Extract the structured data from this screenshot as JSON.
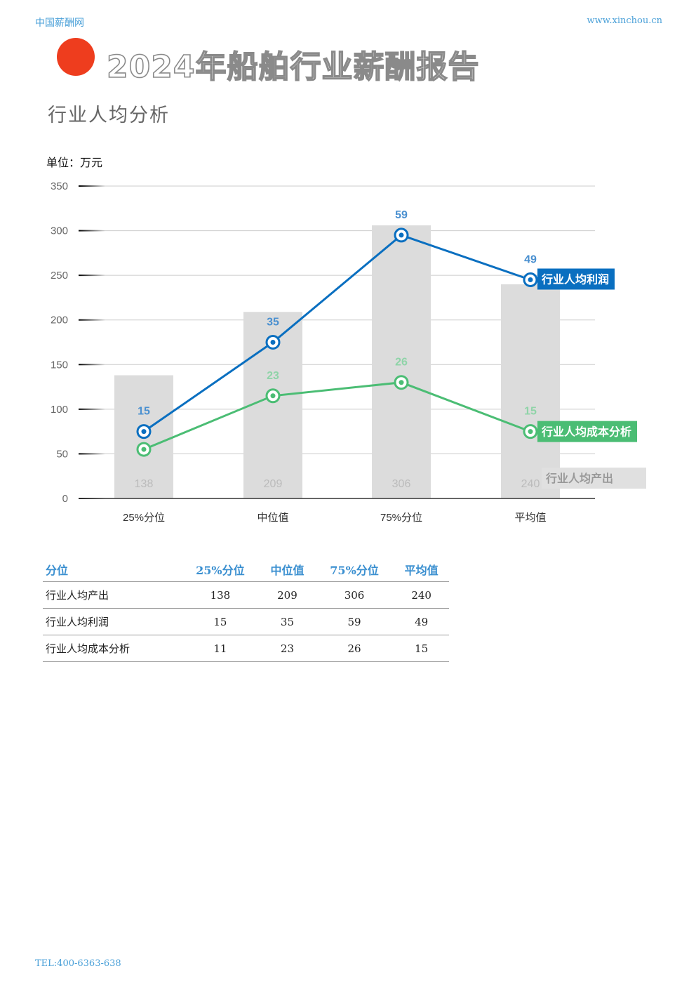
{
  "header": {
    "brand": "中国薪酬网",
    "url": "www.xinchou.cn"
  },
  "report": {
    "title": "2024年船舶行业薪酬报告",
    "subtitle": "行业人均分析"
  },
  "colors": {
    "accent_dot": "#ee3d1e",
    "bars": "#dcdcdc",
    "profit": "#0a6fc0",
    "cost": "#4bbd74"
  },
  "chart_data": {
    "type": "bar+line",
    "unit_label": "单位：万元",
    "categories": [
      "25%分位",
      "中位值",
      "75%分位",
      "平均值"
    ],
    "ylim": [
      0,
      350
    ],
    "yticks": [
      0,
      50,
      100,
      150,
      200,
      250,
      300,
      350
    ],
    "grid": true,
    "series": [
      {
        "name": "行业人均产出",
        "kind": "bar",
        "values": [
          138,
          209,
          306,
          240
        ],
        "color": "#dcdcdc"
      },
      {
        "name": "行业人均利润",
        "kind": "line",
        "values": [
          75,
          175,
          295,
          245
        ],
        "labels": [
          15,
          35,
          59,
          49
        ],
        "color": "#0a6fc0"
      },
      {
        "name": "行业人均成本分析",
        "kind": "line",
        "values": [
          55,
          115,
          130,
          75
        ],
        "labels": [
          "",
          23,
          26,
          15
        ],
        "color": "#4bbd74"
      }
    ]
  },
  "table": {
    "headers": [
      "分位",
      "25%分位",
      "中位值",
      "75%分位",
      "平均值"
    ],
    "rows": [
      [
        "行业人均产出",
        "138",
        "209",
        "306",
        "240"
      ],
      [
        "行业人均利润",
        "15",
        "35",
        "59",
        "49"
      ],
      [
        "行业人均成本分析",
        "11",
        "23",
        "26",
        "15"
      ]
    ]
  },
  "footer": {
    "tel": "TEL:400-6363-638"
  }
}
